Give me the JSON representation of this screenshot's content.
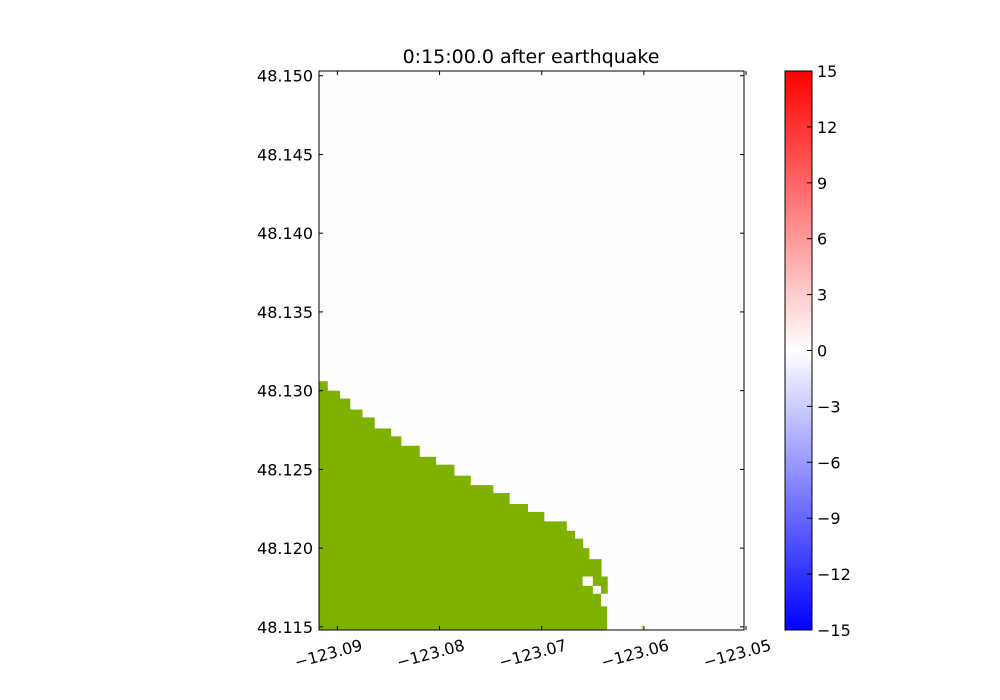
{
  "chart_data": {
    "type": "heatmap",
    "title": "0:15:00.0 after earthquake",
    "xlabel": "",
    "ylabel": "",
    "xlim": [
      -123.0918,
      -123.0502
    ],
    "ylim": [
      48.1148,
      48.1503
    ],
    "x_ticks": [
      -123.09,
      -123.08,
      -123.07,
      -123.06,
      -123.05
    ],
    "x_tick_labels": [
      "−123.09",
      "−123.08",
      "−123.07",
      "−123.06",
      "−123.05"
    ],
    "y_ticks": [
      48.115,
      48.12,
      48.125,
      48.13,
      48.135,
      48.14,
      48.145,
      48.15
    ],
    "y_tick_labels": [
      "48.115",
      "48.120",
      "48.125",
      "48.130",
      "48.135",
      "48.140",
      "48.145",
      "48.150"
    ],
    "grid": false,
    "water_value": 0,
    "colors": {
      "water": "#fdfdfd",
      "land": "#7fb200",
      "land_dark": "#77ac00",
      "axes": "#000000"
    },
    "land_boundary": [
      {
        "x0": -123.0918,
        "x1": -123.091,
        "y_top": 48.1306
      },
      {
        "x0": -123.091,
        "x1": -123.0898,
        "y_top": 48.13
      },
      {
        "x0": -123.0898,
        "x1": -123.0888,
        "y_top": 48.1295
      },
      {
        "x0": -123.0888,
        "x1": -123.0876,
        "y_top": 48.1288
      },
      {
        "x0": -123.0876,
        "x1": -123.0864,
        "y_top": 48.1283
      },
      {
        "x0": -123.0864,
        "x1": -123.0848,
        "y_top": 48.1276
      },
      {
        "x0": -123.0848,
        "x1": -123.0838,
        "y_top": 48.1271
      },
      {
        "x0": -123.0838,
        "x1": -123.082,
        "y_top": 48.1265
      },
      {
        "x0": -123.082,
        "x1": -123.0804,
        "y_top": 48.1258
      },
      {
        "x0": -123.0804,
        "x1": -123.0786,
        "y_top": 48.1253
      },
      {
        "x0": -123.0786,
        "x1": -123.077,
        "y_top": 48.1246
      },
      {
        "x0": -123.077,
        "x1": -123.0748,
        "y_top": 48.124
      },
      {
        "x0": -123.0748,
        "x1": -123.0732,
        "y_top": 48.1235
      },
      {
        "x0": -123.0732,
        "x1": -123.0714,
        "y_top": 48.1228
      },
      {
        "x0": -123.0714,
        "x1": -123.0698,
        "y_top": 48.1223
      },
      {
        "x0": -123.0698,
        "x1": -123.0676,
        "y_top": 48.1217
      },
      {
        "x0": -123.0676,
        "x1": -123.0668,
        "y_top": 48.1211
      },
      {
        "x0": -123.0668,
        "x1": -123.066,
        "y_top": 48.1206
      },
      {
        "x0": -123.066,
        "x1": -123.0654,
        "y_top": 48.12
      },
      {
        "x0": -123.0654,
        "x1": -123.0642,
        "y_top": 48.1193
      },
      {
        "x0": -123.0642,
        "x1": -123.0636,
        "y_top": 48.1182
      },
      {
        "x0": -123.0636,
        "x1": -123.0602,
        "y_top": 48.1151
      }
    ],
    "water_pockets": [
      {
        "x0": -123.066,
        "x1": -123.065,
        "y0": 48.1176,
        "y1": 48.1182
      },
      {
        "x0": -123.065,
        "x1": -123.0642,
        "y0": 48.1171,
        "y1": 48.1176
      },
      {
        "x0": -123.0642,
        "x1": -123.0636,
        "y0": 48.1163,
        "y1": 48.1171
      },
      {
        "x0": -123.0636,
        "x1": -123.0602,
        "y0": 48.1148,
        "y1": 48.1171
      }
    ],
    "colorbar": {
      "min": -15,
      "max": 15,
      "colormap": "bwr",
      "stops": [
        "#0000ff",
        "#ffffff",
        "#ff0000"
      ],
      "ticks": [
        15,
        12,
        9,
        6,
        3,
        0,
        -3,
        -6,
        -9,
        -12,
        -15
      ],
      "tick_labels": [
        "15",
        "12",
        "9",
        "6",
        "3",
        "0",
        "−3",
        "−6",
        "−9",
        "−12",
        "−15"
      ]
    }
  }
}
